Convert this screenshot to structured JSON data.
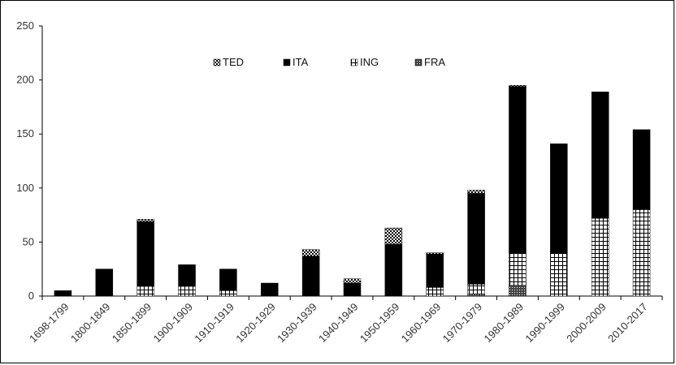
{
  "chart_data": {
    "type": "bar",
    "stacked": true,
    "categories": [
      "1698-1799",
      "1800-1849",
      "1850-1899",
      "1900-1909",
      "1910-1919",
      "1920-1929",
      "1930-1939",
      "1940-1949",
      "1950-1959",
      "1960-1969",
      "1970-1979",
      "1980-1989",
      "1990-1999",
      "2000-2009",
      "2010-2017"
    ],
    "series": [
      {
        "name": "FRA",
        "values": [
          0,
          0,
          0,
          0,
          0,
          0,
          0,
          0,
          0,
          0,
          2,
          10,
          0,
          0,
          0
        ]
      },
      {
        "name": "ING",
        "values": [
          0,
          0,
          9,
          9,
          5,
          0,
          0,
          0,
          0,
          8,
          9,
          30,
          40,
          72,
          80
        ]
      },
      {
        "name": "ITA",
        "values": [
          5,
          25,
          60,
          20,
          20,
          12,
          37,
          12,
          48,
          31,
          84,
          154,
          101,
          117,
          74
        ]
      },
      {
        "name": "TED",
        "values": [
          0,
          0,
          2,
          0,
          0,
          0,
          6,
          4,
          15,
          1,
          3,
          1,
          0,
          0,
          0
        ]
      }
    ],
    "legend_order": [
      "TED",
      "ITA",
      "ING",
      "FRA"
    ],
    "ylim": [
      0,
      250
    ],
    "yticks": [
      "0",
      "50",
      "100",
      "150",
      "200",
      "250"
    ],
    "legend_position": "top-center",
    "grid": false,
    "title": "",
    "xlabel": "",
    "ylabel": ""
  }
}
